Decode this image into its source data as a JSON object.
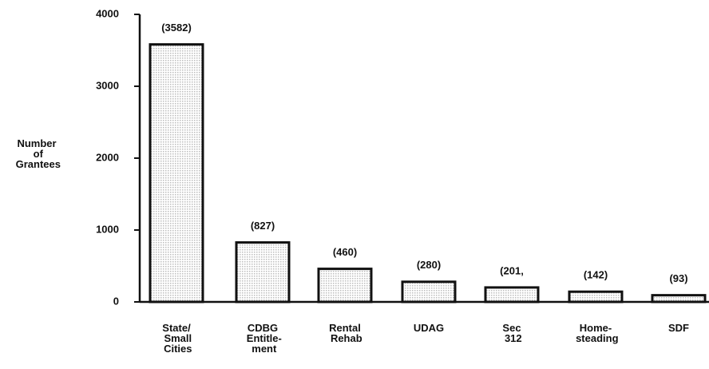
{
  "chart_data": {
    "type": "bar",
    "y_label": "Number of Grantees",
    "categories": [
      "State/ Small Cities",
      "CDBG Entitle- ment",
      "Rental Rehab",
      "UDAG",
      "Sec 312",
      "Home- steading",
      "SDF"
    ],
    "values": [
      3582,
      827,
      460,
      280,
      201,
      142,
      93
    ],
    "value_labels": [
      "(3582)",
      "(827)",
      "(460)",
      "(280)",
      "(201,",
      "(142)",
      "(93)"
    ],
    "color": "#bdbdbd",
    "ylim": [
      0,
      4000
    ],
    "yticks": [
      0,
      1000,
      2000,
      3000,
      4000
    ]
  }
}
